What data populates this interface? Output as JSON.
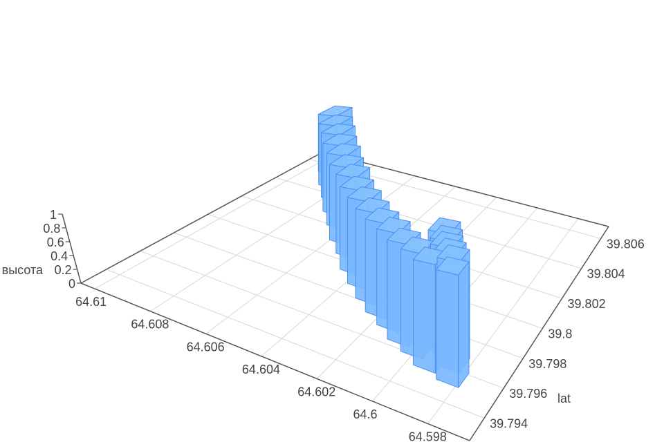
{
  "chart_data": {
    "type": "bar3d",
    "title": "",
    "xlabel": "",
    "ylabel": "lat",
    "zlabel": "высота",
    "x_ticks": [
      "64.61",
      "64.608",
      "64.606",
      "64.604",
      "64.602",
      "64.6",
      "64.598"
    ],
    "y_ticks": [
      "39.794",
      "39.796",
      "39.798",
      "39.8",
      "39.802",
      "39.804",
      "39.806"
    ],
    "z_ticks": [
      "0",
      "0.2",
      "0.4",
      "0.6",
      "0.8",
      "1"
    ],
    "xlim": [
      64.5965,
      64.6105
    ],
    "ylim": [
      39.7925,
      39.8068
    ],
    "zlim": [
      0,
      1
    ],
    "grid": true,
    "bar_color": "#7ab8ff",
    "edge_color": "#4a8fef",
    "bars": [
      {
        "lon": 64.6091,
        "lat": 39.8058,
        "z": 1
      },
      {
        "lon": 64.6084,
        "lat": 39.8049,
        "z": 1
      },
      {
        "lon": 64.6077,
        "lat": 39.8041,
        "z": 1
      },
      {
        "lon": 64.607,
        "lat": 39.8032,
        "z": 1
      },
      {
        "lon": 64.6063,
        "lat": 39.8024,
        "z": 1
      },
      {
        "lon": 64.6056,
        "lat": 39.8015,
        "z": 1
      },
      {
        "lon": 64.6049,
        "lat": 39.8008,
        "z": 1
      },
      {
        "lon": 64.6042,
        "lat": 39.7999,
        "z": 1
      },
      {
        "lon": 64.6035,
        "lat": 39.7992,
        "z": 1
      },
      {
        "lon": 64.6028,
        "lat": 39.7985,
        "z": 1
      },
      {
        "lon": 64.6021,
        "lat": 39.7979,
        "z": 1
      },
      {
        "lon": 64.6014,
        "lat": 39.7974,
        "z": 1
      },
      {
        "lon": 64.6007,
        "lat": 39.7968,
        "z": 1
      },
      {
        "lon": 64.6,
        "lat": 39.7964,
        "z": 1
      },
      {
        "lon": 64.5993,
        "lat": 39.7959,
        "z": 1
      },
      {
        "lon": 64.5983,
        "lat": 39.7956,
        "z": 1
      },
      {
        "lon": 64.5986,
        "lat": 39.7964,
        "z": 1
      },
      {
        "lon": 64.5989,
        "lat": 39.7968,
        "z": 1
      },
      {
        "lon": 64.5992,
        "lat": 39.7972,
        "z": 1
      },
      {
        "lon": 64.5994,
        "lat": 39.7976,
        "z": 1
      },
      {
        "lon": 64.5997,
        "lat": 39.7981,
        "z": 1
      }
    ]
  }
}
